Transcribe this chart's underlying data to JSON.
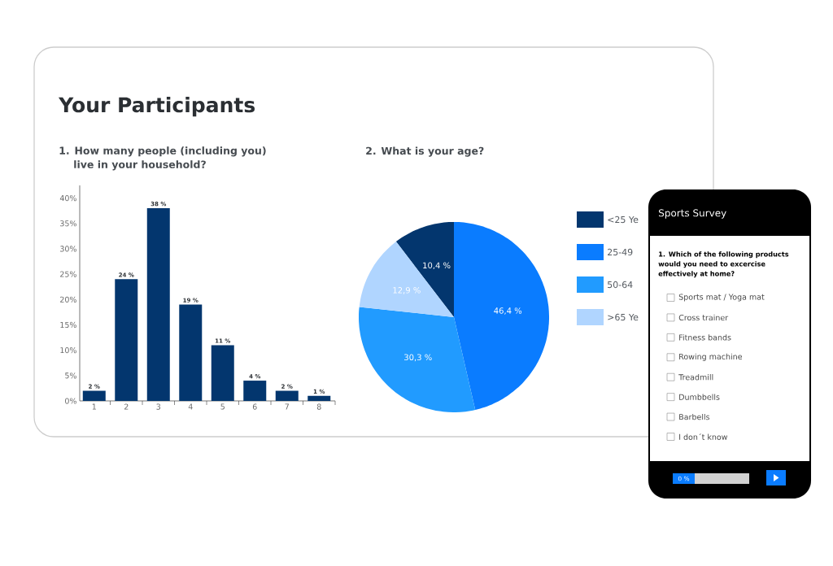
{
  "chart_data": [
    {
      "type": "bar",
      "title": "Your Participants",
      "subtitle": "1. How many people (including you) live in your household?",
      "categories": [
        "1",
        "2",
        "3",
        "4",
        "5",
        "6",
        "7",
        "8"
      ],
      "values": [
        2,
        24,
        38,
        19,
        11,
        4,
        2,
        1
      ],
      "value_labels": [
        "2 %",
        "24 %",
        "38 %",
        "19 %",
        "11 %",
        "4 %",
        "2 %",
        "1 %"
      ],
      "color": "#03366e",
      "ylim": [
        0,
        42.5
      ],
      "yticks": [
        {
          "value": 0,
          "label": "0%"
        },
        {
          "value": 5,
          "label": "5%"
        },
        {
          "value": 10,
          "label": "10%"
        },
        {
          "value": 15,
          "label": "15%"
        },
        {
          "value": 20,
          "label": "20%"
        },
        {
          "value": 25,
          "label": "25%"
        },
        {
          "value": 30,
          "label": "30%"
        },
        {
          "value": 35,
          "label": "35%"
        },
        {
          "value": 40,
          "label": "40%"
        }
      ]
    },
    {
      "type": "pie",
      "title": "2. What is your age?",
      "categories": [
        "<25 Ye",
        "25-49",
        "50-64",
        ">65 Ye"
      ],
      "values": [
        10.4,
        46.4,
        30.3,
        12.9
      ],
      "value_labels": [
        "10,4 %",
        "46,4 %",
        "30,3 %",
        "12,9 %"
      ],
      "colors": [
        "#03366e",
        "#0a7cff",
        "#219bff",
        "#b0d5ff"
      ],
      "legend": "right"
    },
    {
      "type": "other",
      "title": "Sports Survey",
      "subtitle": "1. Which of the following products would you need to excercise effectively at home?",
      "annotations": [
        "Sports mat / Yoga mat",
        "Cross trainer",
        "Fitness bands",
        "Rowing machine",
        "Treadmill",
        "Dumbbells",
        "Barbells",
        "I don´t know",
        "0 %"
      ]
    }
  ]
}
